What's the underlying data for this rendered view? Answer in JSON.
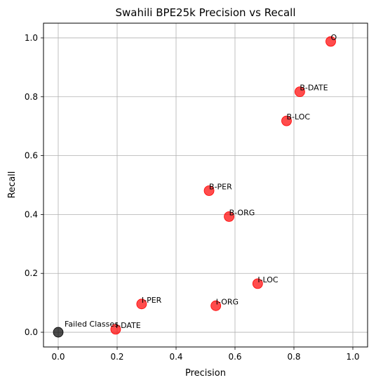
{
  "chart_data": {
    "type": "scatter",
    "title": "Swahili BPE25k Precision vs Recall",
    "xlabel": "Precision",
    "ylabel": "Recall",
    "xlim": [
      -0.05,
      1.05
    ],
    "ylim": [
      -0.05,
      1.05
    ],
    "grid": true,
    "x_ticks": [
      "0.0",
      "0.2",
      "0.4",
      "0.6",
      "0.8",
      "1.0"
    ],
    "y_ticks": [
      "0.0",
      "0.2",
      "0.4",
      "0.6",
      "0.8",
      "1.0"
    ],
    "point_color": "#ff0000",
    "failed_color": "#000000",
    "points": [
      {
        "label": "O",
        "x": 0.925,
        "y": 0.988
      },
      {
        "label": "B-DATE",
        "x": 0.82,
        "y": 0.817
      },
      {
        "label": "B-LOC",
        "x": 0.775,
        "y": 0.718
      },
      {
        "label": "B-PER",
        "x": 0.512,
        "y": 0.481
      },
      {
        "label": "B-ORG",
        "x": 0.58,
        "y": 0.393
      },
      {
        "label": "I-LOC",
        "x": 0.677,
        "y": 0.165
      },
      {
        "label": "I-PER",
        "x": 0.283,
        "y": 0.096
      },
      {
        "label": "I-ORG",
        "x": 0.535,
        "y": 0.09
      },
      {
        "label": "I-DATE",
        "x": 0.195,
        "y": 0.01
      }
    ],
    "failed": {
      "label": "Failed Classes",
      "x": 0.0,
      "y": 0.0
    }
  }
}
